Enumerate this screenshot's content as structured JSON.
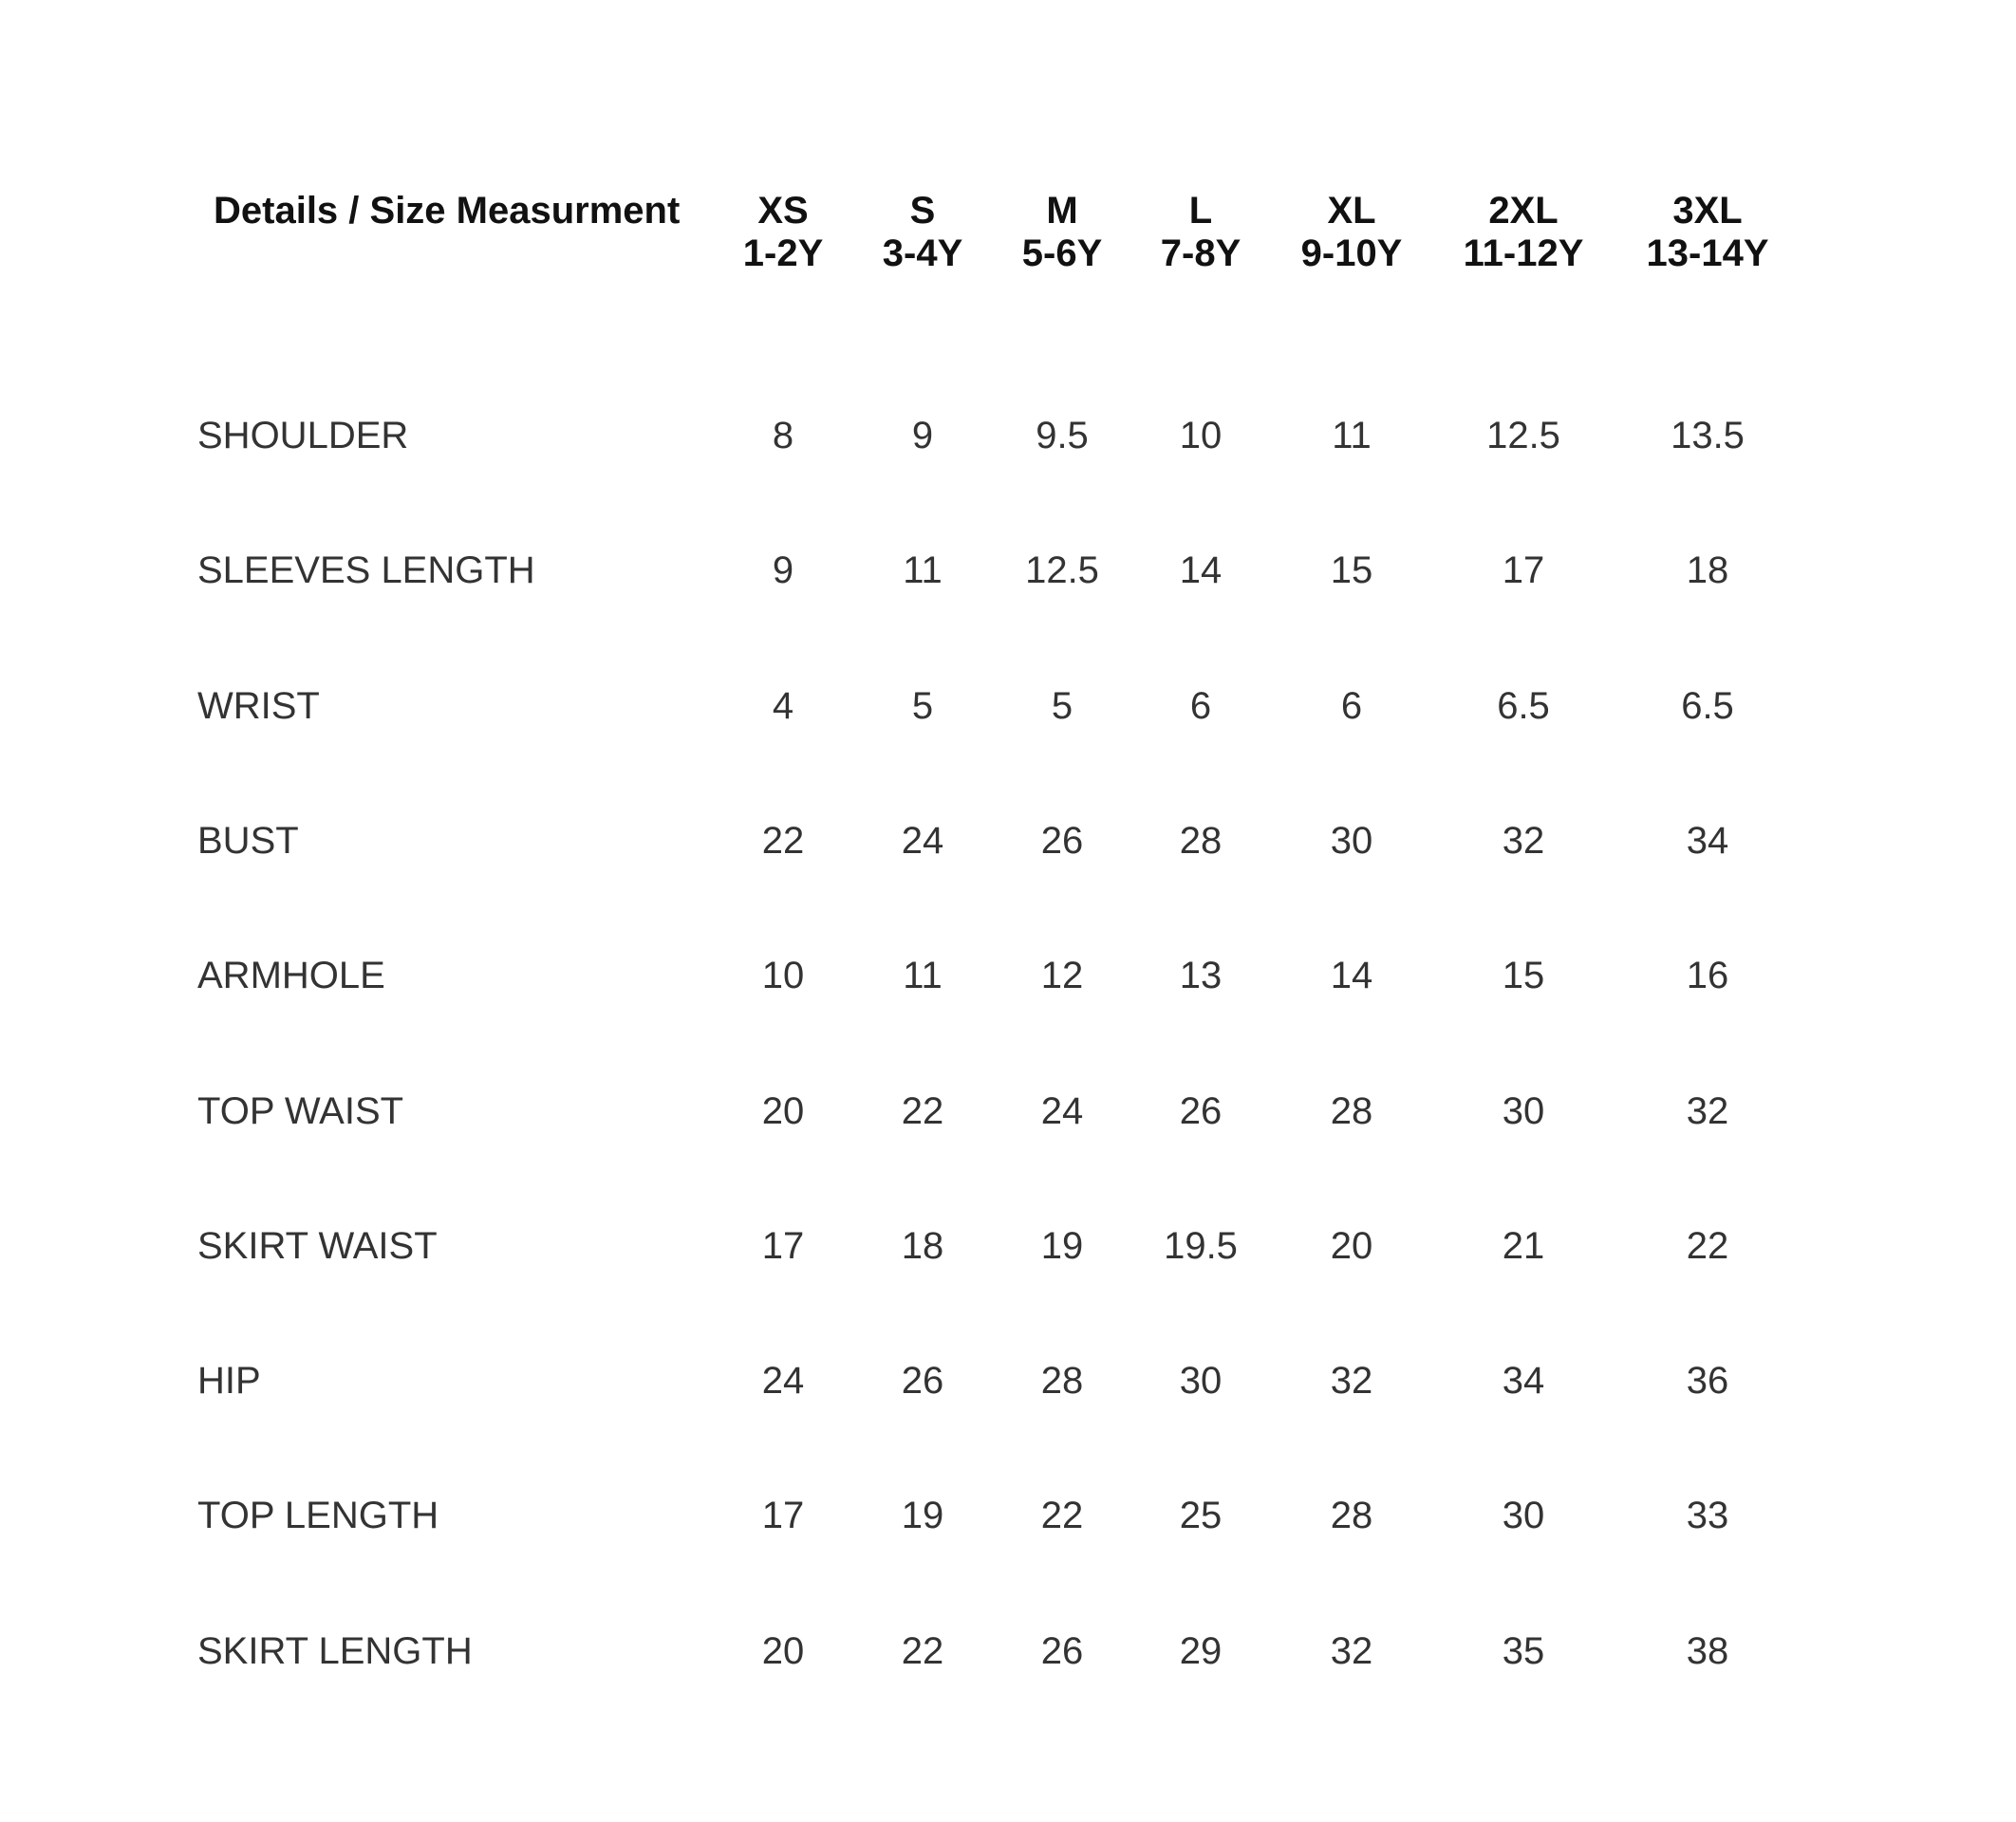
{
  "table": {
    "header": "Details / Size Measurment",
    "columns": [
      {
        "size": "XS",
        "age": "1-2Y"
      },
      {
        "size": "S",
        "age": "3-4Y"
      },
      {
        "size": "M",
        "age": "5-6Y"
      },
      {
        "size": "L",
        "age": "7-8Y"
      },
      {
        "size": "XL",
        "age": "9-10Y"
      },
      {
        "size": "2XL",
        "age": "11-12Y"
      },
      {
        "size": "3XL",
        "age": "13-14Y"
      }
    ],
    "rows": [
      {
        "label": "SHOULDER",
        "values": [
          8,
          9,
          9.5,
          10,
          11,
          12.5,
          13.5
        ]
      },
      {
        "label": "SLEEVES LENGTH",
        "values": [
          9,
          11,
          12.5,
          14,
          15,
          17,
          18
        ]
      },
      {
        "label": "WRIST",
        "values": [
          4,
          5,
          5,
          6,
          6,
          6.5,
          6.5
        ]
      },
      {
        "label": "BUST",
        "values": [
          22,
          24,
          26,
          28,
          30,
          32,
          34
        ]
      },
      {
        "label": "ARMHOLE",
        "values": [
          10,
          11,
          12,
          13,
          14,
          15,
          16
        ]
      },
      {
        "label": "TOP WAIST",
        "values": [
          20,
          22,
          24,
          26,
          28,
          30,
          32
        ]
      },
      {
        "label": "SKIRT WAIST",
        "values": [
          17,
          18,
          19,
          19.5,
          20,
          21,
          22
        ]
      },
      {
        "label": "HIP",
        "values": [
          24,
          26,
          28,
          30,
          32,
          34,
          36
        ]
      },
      {
        "label": "TOP LENGTH",
        "values": [
          17,
          19,
          22,
          25,
          28,
          30,
          33
        ]
      },
      {
        "label": "SKIRT LENGTH",
        "values": [
          20,
          22,
          26,
          29,
          32,
          35,
          38
        ]
      }
    ]
  }
}
